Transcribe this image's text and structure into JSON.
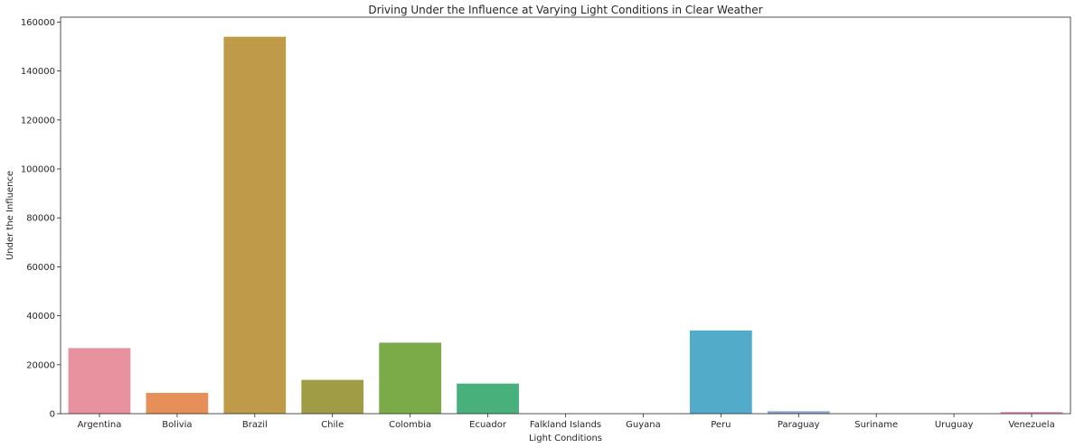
{
  "chart_data": {
    "type": "bar",
    "title": "Driving Under the Influence at Varying Light Conditions in Clear Weather",
    "xlabel": "Light Conditions",
    "ylabel": "Under the Influence",
    "categories": [
      "Argentina",
      "Bolivia",
      "Brazil",
      "Chile",
      "Colombia",
      "Ecuador",
      "Falkland Islands",
      "Guyana",
      "Peru",
      "Paraguay",
      "Suriname",
      "Uruguay",
      "Venezuela"
    ],
    "values": [
      26800,
      8500,
      154000,
      13800,
      29000,
      12300,
      0,
      0,
      34000,
      1000,
      0,
      0,
      700
    ],
    "colors": [
      "#e8929f",
      "#e68f58",
      "#bf9b49",
      "#a09b45",
      "#7aab48",
      "#48b07b",
      "#4cae9e",
      "#4eab9f",
      "#53abca",
      "#8aa7d3",
      "#c29be5",
      "#e196d6",
      "#e493bc"
    ],
    "ylim": [
      0,
      162000
    ],
    "yticks": [
      0,
      20000,
      40000,
      60000,
      80000,
      100000,
      120000,
      140000,
      160000
    ],
    "grid": false,
    "legend": "none"
  }
}
